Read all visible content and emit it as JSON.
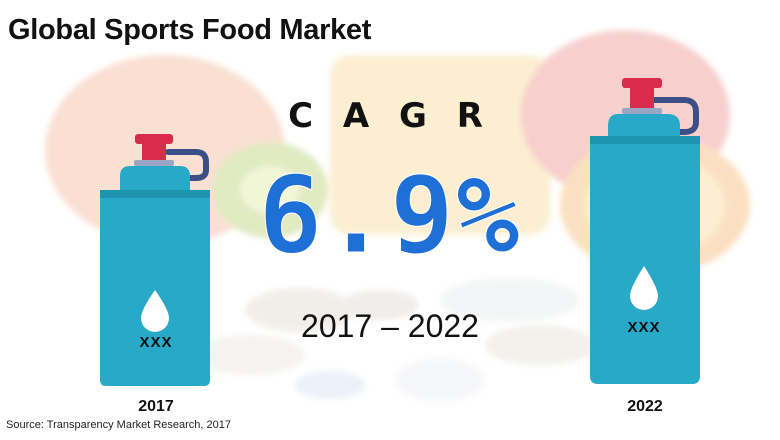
{
  "title": "Global Sports Food Market",
  "cagr": {
    "label": "C A G R",
    "value": "6.9%",
    "period": "2017 – 2022"
  },
  "bottles": [
    {
      "code": "XXX",
      "year": "2017"
    },
    {
      "code": "XXX",
      "year": "2022"
    }
  ],
  "source": "Source: Transparency Market Research, 2017",
  "colors": {
    "accent_blue": "#1e6fd6",
    "bottle_teal": "#27a9c7",
    "cap_red": "#d92b4b",
    "cap_ring": "#3b4f86"
  }
}
